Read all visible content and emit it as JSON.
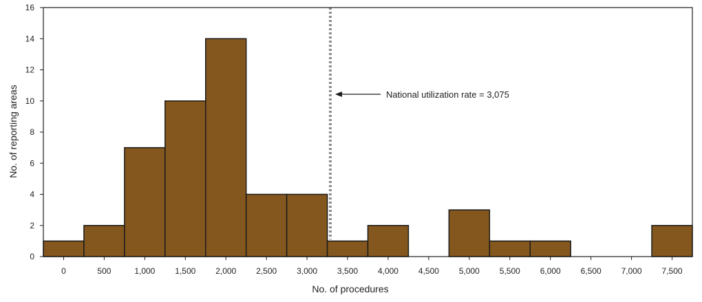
{
  "chart_data": {
    "type": "bar",
    "xlabel": "No. of procedures",
    "ylabel": "No. of reporting areas",
    "xlim": [
      -250,
      7750
    ],
    "ylim": [
      0,
      16
    ],
    "bin_width": 500,
    "x_ticks": [
      {
        "value": 0,
        "label": "0"
      },
      {
        "value": 500,
        "label": "500"
      },
      {
        "value": 1000,
        "label": "1,000"
      },
      {
        "value": 1500,
        "label": "1,500"
      },
      {
        "value": 2000,
        "label": "2,000"
      },
      {
        "value": 2500,
        "label": "2,500"
      },
      {
        "value": 3000,
        "label": "3,000"
      },
      {
        "value": 3500,
        "label": "3,500"
      },
      {
        "value": 4000,
        "label": "4,000"
      },
      {
        "value": 4500,
        "label": "4,500"
      },
      {
        "value": 5000,
        "label": "5,000"
      },
      {
        "value": 5500,
        "label": "5,500"
      },
      {
        "value": 6000,
        "label": "6,000"
      },
      {
        "value": 6500,
        "label": "6,500"
      },
      {
        "value": 7000,
        "label": "7,000"
      },
      {
        "value": 7500,
        "label": "7,500"
      }
    ],
    "y_ticks": [
      {
        "value": 0,
        "label": "0"
      },
      {
        "value": 2,
        "label": "2"
      },
      {
        "value": 4,
        "label": "4"
      },
      {
        "value": 6,
        "label": "6"
      },
      {
        "value": 8,
        "label": "8"
      },
      {
        "value": 10,
        "label": "10"
      },
      {
        "value": 12,
        "label": "12"
      },
      {
        "value": 14,
        "label": "14"
      },
      {
        "value": 16,
        "label": "16"
      }
    ],
    "bins": [
      {
        "center": 0,
        "count": 1
      },
      {
        "center": 500,
        "count": 2
      },
      {
        "center": 1000,
        "count": 7
      },
      {
        "center": 1500,
        "count": 10
      },
      {
        "center": 2000,
        "count": 14
      },
      {
        "center": 2500,
        "count": 4
      },
      {
        "center": 3000,
        "count": 4
      },
      {
        "center": 3500,
        "count": 1
      },
      {
        "center": 4000,
        "count": 2
      },
      {
        "center": 4500,
        "count": 0
      },
      {
        "center": 5000,
        "count": 3
      },
      {
        "center": 5500,
        "count": 1
      },
      {
        "center": 6000,
        "count": 1
      },
      {
        "center": 6500,
        "count": 0
      },
      {
        "center": 7000,
        "count": 0
      },
      {
        "center": 7500,
        "count": 2
      }
    ],
    "reference_line": {
      "value": 3075,
      "label": "National utilization rate = 3,075"
    },
    "grid": false,
    "legend": "none",
    "colors": {
      "bar_fill": "#84571e",
      "bar_stroke": "#1a1a1a",
      "axis": "#1a1a1a",
      "reference_line": "#8c8c8c"
    }
  }
}
